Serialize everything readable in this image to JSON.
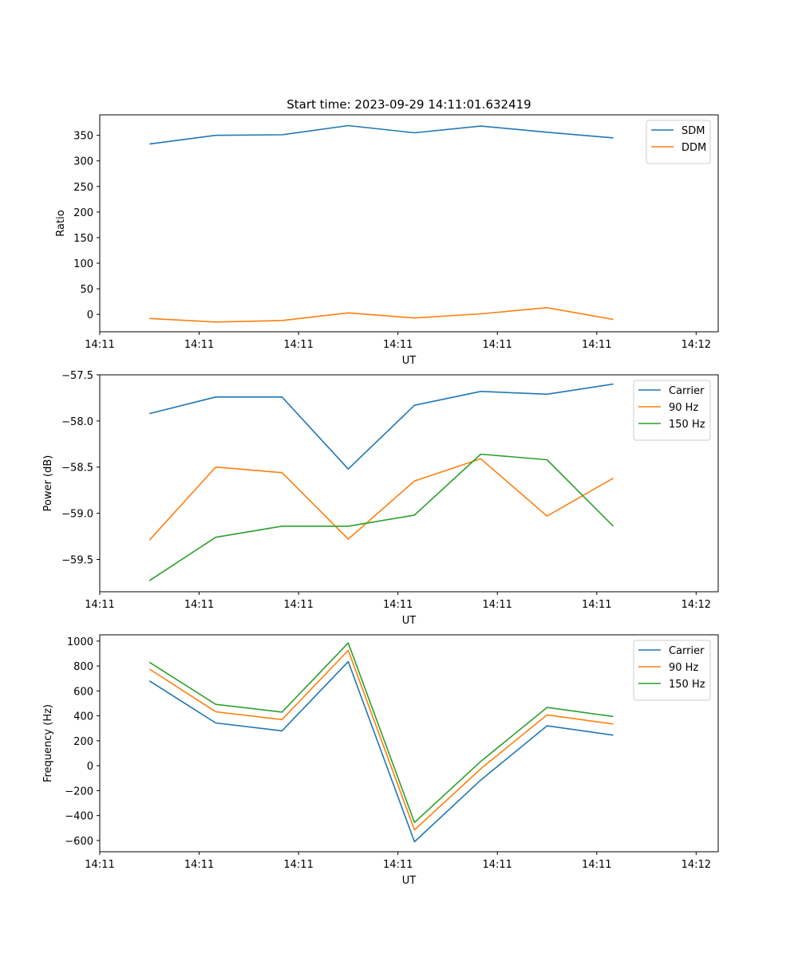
{
  "figure_title": "Start time: 2023-09-29 14:11:01.632419",
  "colors": {
    "blue": "#1f77b4",
    "orange": "#ff7f0e",
    "green": "#2ca02c"
  },
  "chart_data": [
    {
      "type": "line",
      "title": "Start time: 2023-09-29 14:11:01.632419",
      "xlabel": "UT",
      "ylabel": "Ratio",
      "xlim": [
        0,
        9.333
      ],
      "x": [
        0.75,
        1.75,
        2.75,
        3.75,
        4.75,
        5.75,
        6.75,
        7.75
      ],
      "xticks": [
        0,
        1.5,
        3,
        4.5,
        6,
        7.5,
        9
      ],
      "xticklabels": [
        "14:11",
        "14:11",
        "14:11",
        "14:11",
        "14:11",
        "14:11",
        "14:12"
      ],
      "ylim": [
        -34,
        390
      ],
      "yticks": [
        0,
        50,
        100,
        150,
        200,
        250,
        300,
        350
      ],
      "yticklabels": [
        "0",
        "50",
        "100",
        "150",
        "200",
        "250",
        "300",
        "350"
      ],
      "legend_position": "top-right",
      "series": [
        {
          "name": "SDM",
          "color": "#1f77b4",
          "values": [
            333,
            350,
            351,
            369,
            355,
            368,
            356,
            345
          ]
        },
        {
          "name": "DDM",
          "color": "#ff7f0e",
          "values": [
            -8,
            -15,
            -12,
            3,
            -7,
            1,
            13,
            -10
          ]
        }
      ]
    },
    {
      "type": "line",
      "title": "",
      "xlabel": "UT",
      "ylabel": "Power (dB)",
      "xlim": [
        0,
        9.333
      ],
      "x": [
        0.75,
        1.75,
        2.75,
        3.75,
        4.75,
        5.75,
        6.75,
        7.75
      ],
      "xticks": [
        0,
        1.5,
        3,
        4.5,
        6,
        7.5,
        9
      ],
      "xticklabels": [
        "14:11",
        "14:11",
        "14:11",
        "14:11",
        "14:11",
        "14:11",
        "14:12"
      ],
      "ylim": [
        -59.85,
        -57.5
      ],
      "yticks": [
        -57.5,
        -58.0,
        -58.5,
        -59.0,
        -59.5
      ],
      "yticklabels": [
        "−57.5",
        "−58.0",
        "−58.5",
        "−59.0",
        "−59.5"
      ],
      "legend_position": "top-right",
      "series": [
        {
          "name": "Carrier",
          "color": "#1f77b4",
          "values": [
            -57.92,
            -57.74,
            -57.74,
            -58.52,
            -57.83,
            -57.68,
            -57.71,
            -57.6
          ]
        },
        {
          "name": "90 Hz",
          "color": "#ff7f0e",
          "values": [
            -59.29,
            -58.5,
            -58.56,
            -59.28,
            -58.65,
            -58.41,
            -59.03,
            -58.62
          ]
        },
        {
          "name": "150 Hz",
          "color": "#2ca02c",
          "values": [
            -59.73,
            -59.26,
            -59.14,
            -59.14,
            -59.02,
            -58.36,
            -58.42,
            -59.14
          ]
        }
      ]
    },
    {
      "type": "line",
      "title": "",
      "xlabel": "UT",
      "ylabel": "Frequency (Hz)",
      "xlim": [
        0,
        9.333
      ],
      "x": [
        0.75,
        1.75,
        2.75,
        3.75,
        4.75,
        5.75,
        6.75,
        7.75
      ],
      "xticks": [
        0,
        1.5,
        3,
        4.5,
        6,
        7.5,
        9
      ],
      "xticklabels": [
        "14:11",
        "14:11",
        "14:11",
        "14:11",
        "14:11",
        "14:11",
        "14:12"
      ],
      "ylim": [
        -690,
        1050
      ],
      "yticks": [
        -600,
        -400,
        -200,
        0,
        200,
        400,
        600,
        800,
        1000
      ],
      "yticklabels": [
        "−600",
        "−400",
        "−200",
        "0",
        "200",
        "400",
        "600",
        "800",
        "1000"
      ],
      "legend_position": "top-right",
      "series": [
        {
          "name": "Carrier",
          "color": "#1f77b4",
          "values": [
            680,
            343,
            280,
            835,
            -610,
            -115,
            320,
            245
          ]
        },
        {
          "name": "90 Hz",
          "color": "#ff7f0e",
          "values": [
            775,
            433,
            370,
            925,
            -515,
            -25,
            408,
            335
          ]
        },
        {
          "name": "150 Hz",
          "color": "#2ca02c",
          "values": [
            830,
            492,
            430,
            985,
            -455,
            35,
            467,
            395
          ]
        }
      ]
    }
  ]
}
